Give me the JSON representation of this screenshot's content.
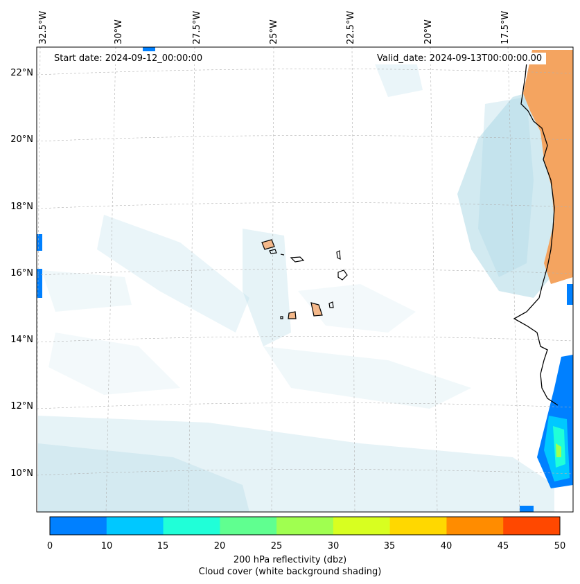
{
  "map": {
    "start_date": "Start date: 2024-09-12_00:00:00",
    "valid_date": "Valid_date: 2024-09-13T00:00:00.00",
    "lon_labels": [
      "32.5°W",
      "30°W",
      "27.5°W",
      "25°W",
      "22.5°W",
      "20°W",
      "17.5°W"
    ],
    "lat_labels": [
      "22°N",
      "20°N",
      "18°N",
      "16°N",
      "14°N",
      "12°N",
      "10°N"
    ]
  },
  "colorbar": {
    "ticks": [
      "0",
      "10",
      "15",
      "20",
      "25",
      "30",
      "35",
      "40",
      "45",
      "50"
    ],
    "colors": [
      "#0080ff",
      "#00c8ff",
      "#20ffd8",
      "#60ff90",
      "#a0ff50",
      "#d8ff20",
      "#ffd800",
      "#ff8c00",
      "#ff4800"
    ],
    "label_line1": "200 hPa reflectivity (dbz)",
    "label_line2": "Cloud cover (white background shading)"
  },
  "colors": {
    "land_shading": "#f4a460",
    "cloud_shading": "#add8e6",
    "reflectivity_low": "#0080ff"
  }
}
